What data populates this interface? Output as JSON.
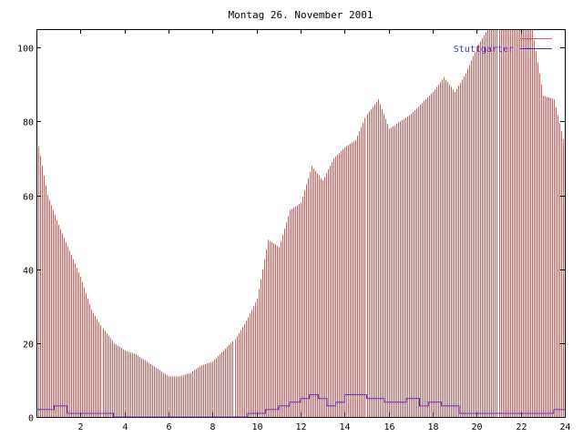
{
  "chart_data": {
    "type": "bar",
    "title": "Montag 26. November 2001",
    "xlim": [
      0,
      24
    ],
    "ylim": [
      0,
      105
    ],
    "x_ticks": [
      2,
      4,
      6,
      8,
      10,
      12,
      14,
      16,
      18,
      20,
      22,
      24
    ],
    "y_ticks": [
      0,
      20,
      40,
      60,
      80,
      100
    ],
    "grid": false,
    "legend_position": "top-right",
    "colors": {
      "series_a": "#e05a5a",
      "series_b": "#3333cc"
    },
    "series": [
      {
        "name": "",
        "type": "bar",
        "x": [
          0,
          0.5,
          1,
          1.5,
          2,
          2.5,
          3,
          3.5,
          4,
          4.5,
          5,
          5.5,
          6,
          6.5,
          7,
          7.5,
          8,
          8.5,
          9,
          9.5,
          10,
          10.5,
          11,
          11.5,
          12,
          12.5,
          13,
          13.5,
          14,
          14.5,
          15,
          15.5,
          16,
          16.5,
          17,
          17.5,
          18,
          18.5,
          19,
          19.5,
          20,
          20.5,
          21,
          21.5,
          22,
          22.5,
          23,
          23.5,
          24
        ],
        "values": [
          76,
          60,
          52,
          45,
          38,
          29,
          24,
          20,
          18,
          17,
          15,
          13,
          11,
          11,
          12,
          14,
          15,
          18,
          21,
          26,
          32,
          48,
          46,
          56,
          58,
          68,
          64,
          70,
          73,
          75,
          82,
          86,
          78,
          80,
          82,
          85,
          88,
          92,
          88,
          93,
          100,
          105,
          105,
          105,
          105,
          105,
          87,
          86,
          73
        ]
      },
      {
        "name": "Stuttgarter",
        "type": "line",
        "x": [
          0,
          0.8,
          1.4,
          3.5,
          9.6,
          10.4,
          11,
          11.5,
          12,
          12.4,
          12.8,
          13.2,
          13.6,
          14,
          15,
          15.8,
          16.8,
          17.4,
          17.8,
          18.4,
          19.2,
          20,
          21,
          22,
          23,
          23.5,
          24
        ],
        "values": [
          2,
          3,
          1,
          0,
          1,
          2,
          3,
          4,
          5,
          6,
          5,
          3,
          4,
          6,
          5,
          4,
          5,
          3,
          4,
          3,
          1,
          1,
          1,
          1,
          1,
          2,
          2
        ]
      }
    ]
  }
}
